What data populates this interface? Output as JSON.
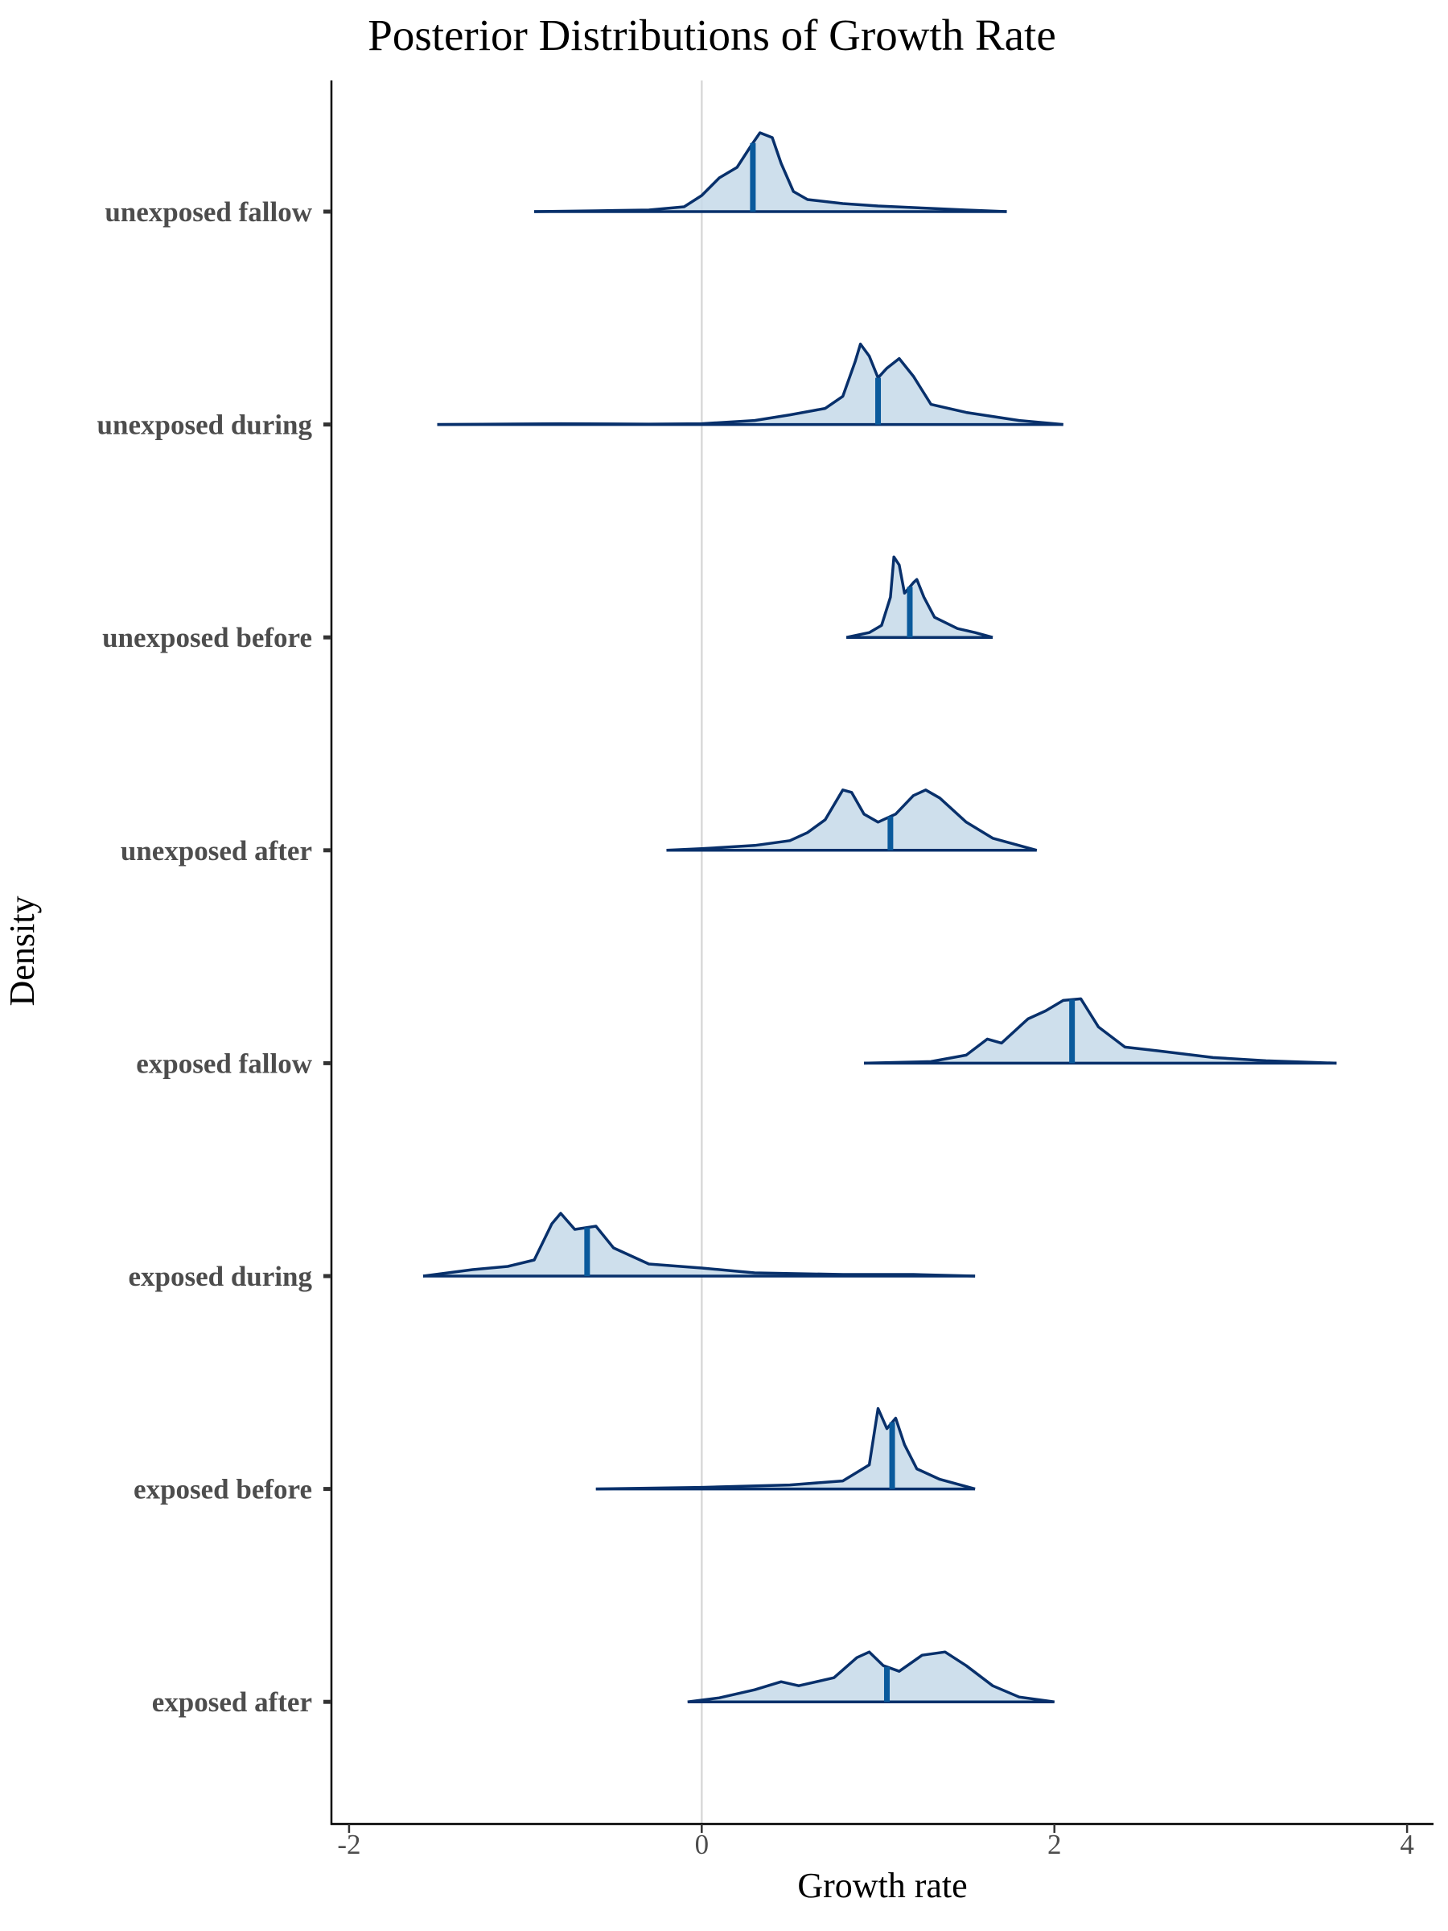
{
  "chart_data": {
    "type": "ridgeline",
    "title": "Posterior Distributions of Growth Rate",
    "xlabel": "Growth rate",
    "ylabel": "Density",
    "xlim": [
      -2.1,
      4.15
    ],
    "x_ticks": [
      -2,
      0,
      2,
      4
    ],
    "x_tick_labels": [
      "-2",
      "0",
      "2",
      "4"
    ],
    "reference_line_x": 0,
    "grid": false,
    "legend": "none",
    "colors": {
      "line": "#08306b",
      "fill": "#c6d9e9",
      "median": "#0a5a9c",
      "refline": "#d9d9d9"
    },
    "categories": [
      "unexposed fallow",
      "unexposed during",
      "unexposed before",
      "unexposed after",
      "exposed fallow",
      "exposed during",
      "exposed before",
      "exposed after"
    ],
    "series": [
      {
        "name": "unexposed fallow",
        "range": [
          -0.95,
          1.73
        ],
        "median": 0.29,
        "density": [
          [
            -0.95,
            0
          ],
          [
            -0.6,
            0.01
          ],
          [
            -0.3,
            0.02
          ],
          [
            -0.1,
            0.06
          ],
          [
            0,
            0.2
          ],
          [
            0.1,
            0.42
          ],
          [
            0.2,
            0.55
          ],
          [
            0.28,
            0.82
          ],
          [
            0.33,
            0.98
          ],
          [
            0.4,
            0.92
          ],
          [
            0.45,
            0.6
          ],
          [
            0.52,
            0.25
          ],
          [
            0.6,
            0.15
          ],
          [
            0.8,
            0.1
          ],
          [
            1.0,
            0.07
          ],
          [
            1.3,
            0.04
          ],
          [
            1.5,
            0.02
          ],
          [
            1.73,
            0
          ]
        ]
      },
      {
        "name": "unexposed during",
        "range": [
          -1.5,
          2.05
        ],
        "median": 1.0,
        "density": [
          [
            -1.5,
            0
          ],
          [
            -0.8,
            0.01
          ],
          [
            -0.3,
            0.005
          ],
          [
            0,
            0.01
          ],
          [
            0.3,
            0.05
          ],
          [
            0.5,
            0.12
          ],
          [
            0.7,
            0.2
          ],
          [
            0.8,
            0.35
          ],
          [
            0.87,
            0.78
          ],
          [
            0.9,
            1.0
          ],
          [
            0.95,
            0.85
          ],
          [
            1.0,
            0.58
          ],
          [
            1.05,
            0.7
          ],
          [
            1.12,
            0.82
          ],
          [
            1.2,
            0.6
          ],
          [
            1.3,
            0.25
          ],
          [
            1.5,
            0.15
          ],
          [
            1.8,
            0.05
          ],
          [
            2.05,
            0
          ]
        ]
      },
      {
        "name": "unexposed before",
        "range": [
          0.82,
          1.65
        ],
        "median": 1.18,
        "density": [
          [
            0.82,
            0
          ],
          [
            0.95,
            0.06
          ],
          [
            1.02,
            0.15
          ],
          [
            1.07,
            0.5
          ],
          [
            1.09,
            1.0
          ],
          [
            1.12,
            0.9
          ],
          [
            1.15,
            0.55
          ],
          [
            1.2,
            0.68
          ],
          [
            1.22,
            0.72
          ],
          [
            1.26,
            0.5
          ],
          [
            1.32,
            0.25
          ],
          [
            1.45,
            0.11
          ],
          [
            1.55,
            0.06
          ],
          [
            1.65,
            0
          ]
        ]
      },
      {
        "name": "unexposed after",
        "range": [
          -0.2,
          1.9
        ],
        "median": 1.07,
        "density": [
          [
            -0.2,
            0
          ],
          [
            0,
            0.02
          ],
          [
            0.3,
            0.06
          ],
          [
            0.5,
            0.12
          ],
          [
            0.6,
            0.22
          ],
          [
            0.7,
            0.38
          ],
          [
            0.8,
            0.75
          ],
          [
            0.85,
            0.72
          ],
          [
            0.92,
            0.45
          ],
          [
            1.0,
            0.35
          ],
          [
            1.1,
            0.45
          ],
          [
            1.2,
            0.68
          ],
          [
            1.27,
            0.75
          ],
          [
            1.35,
            0.65
          ],
          [
            1.5,
            0.35
          ],
          [
            1.65,
            0.15
          ],
          [
            1.9,
            0
          ]
        ]
      },
      {
        "name": "exposed fallow",
        "range": [
          0.92,
          3.6
        ],
        "median": 2.1,
        "density": [
          [
            0.92,
            0
          ],
          [
            1.3,
            0.02
          ],
          [
            1.5,
            0.1
          ],
          [
            1.62,
            0.3
          ],
          [
            1.7,
            0.25
          ],
          [
            1.85,
            0.55
          ],
          [
            1.95,
            0.65
          ],
          [
            2.05,
            0.78
          ],
          [
            2.15,
            0.8
          ],
          [
            2.25,
            0.45
          ],
          [
            2.4,
            0.2
          ],
          [
            2.6,
            0.15
          ],
          [
            2.9,
            0.07
          ],
          [
            3.2,
            0.03
          ],
          [
            3.6,
            0
          ]
        ]
      },
      {
        "name": "exposed during",
        "range": [
          -1.58,
          1.55
        ],
        "median": -0.65,
        "density": [
          [
            -1.58,
            0
          ],
          [
            -1.3,
            0.08
          ],
          [
            -1.1,
            0.12
          ],
          [
            -0.95,
            0.2
          ],
          [
            -0.85,
            0.65
          ],
          [
            -0.8,
            0.78
          ],
          [
            -0.72,
            0.58
          ],
          [
            -0.6,
            0.62
          ],
          [
            -0.5,
            0.35
          ],
          [
            -0.3,
            0.15
          ],
          [
            0,
            0.1
          ],
          [
            0.3,
            0.04
          ],
          [
            0.8,
            0.02
          ],
          [
            1.2,
            0.02
          ],
          [
            1.55,
            0
          ]
        ]
      },
      {
        "name": "exposed before",
        "range": [
          -0.6,
          1.55
        ],
        "median": 1.08,
        "density": [
          [
            -0.6,
            0
          ],
          [
            0,
            0.02
          ],
          [
            0.5,
            0.05
          ],
          [
            0.8,
            0.1
          ],
          [
            0.95,
            0.3
          ],
          [
            1.0,
            1.0
          ],
          [
            1.05,
            0.75
          ],
          [
            1.1,
            0.88
          ],
          [
            1.15,
            0.55
          ],
          [
            1.22,
            0.25
          ],
          [
            1.35,
            0.12
          ],
          [
            1.55,
            0
          ]
        ]
      },
      {
        "name": "exposed after",
        "range": [
          -0.08,
          2.0
        ],
        "median": 1.05,
        "density": [
          [
            -0.08,
            0
          ],
          [
            0.1,
            0.05
          ],
          [
            0.3,
            0.15
          ],
          [
            0.45,
            0.25
          ],
          [
            0.55,
            0.2
          ],
          [
            0.75,
            0.3
          ],
          [
            0.88,
            0.55
          ],
          [
            0.95,
            0.62
          ],
          [
            1.03,
            0.45
          ],
          [
            1.12,
            0.38
          ],
          [
            1.25,
            0.58
          ],
          [
            1.38,
            0.62
          ],
          [
            1.5,
            0.45
          ],
          [
            1.65,
            0.2
          ],
          [
            1.8,
            0.06
          ],
          [
            2.0,
            0
          ]
        ]
      }
    ]
  }
}
